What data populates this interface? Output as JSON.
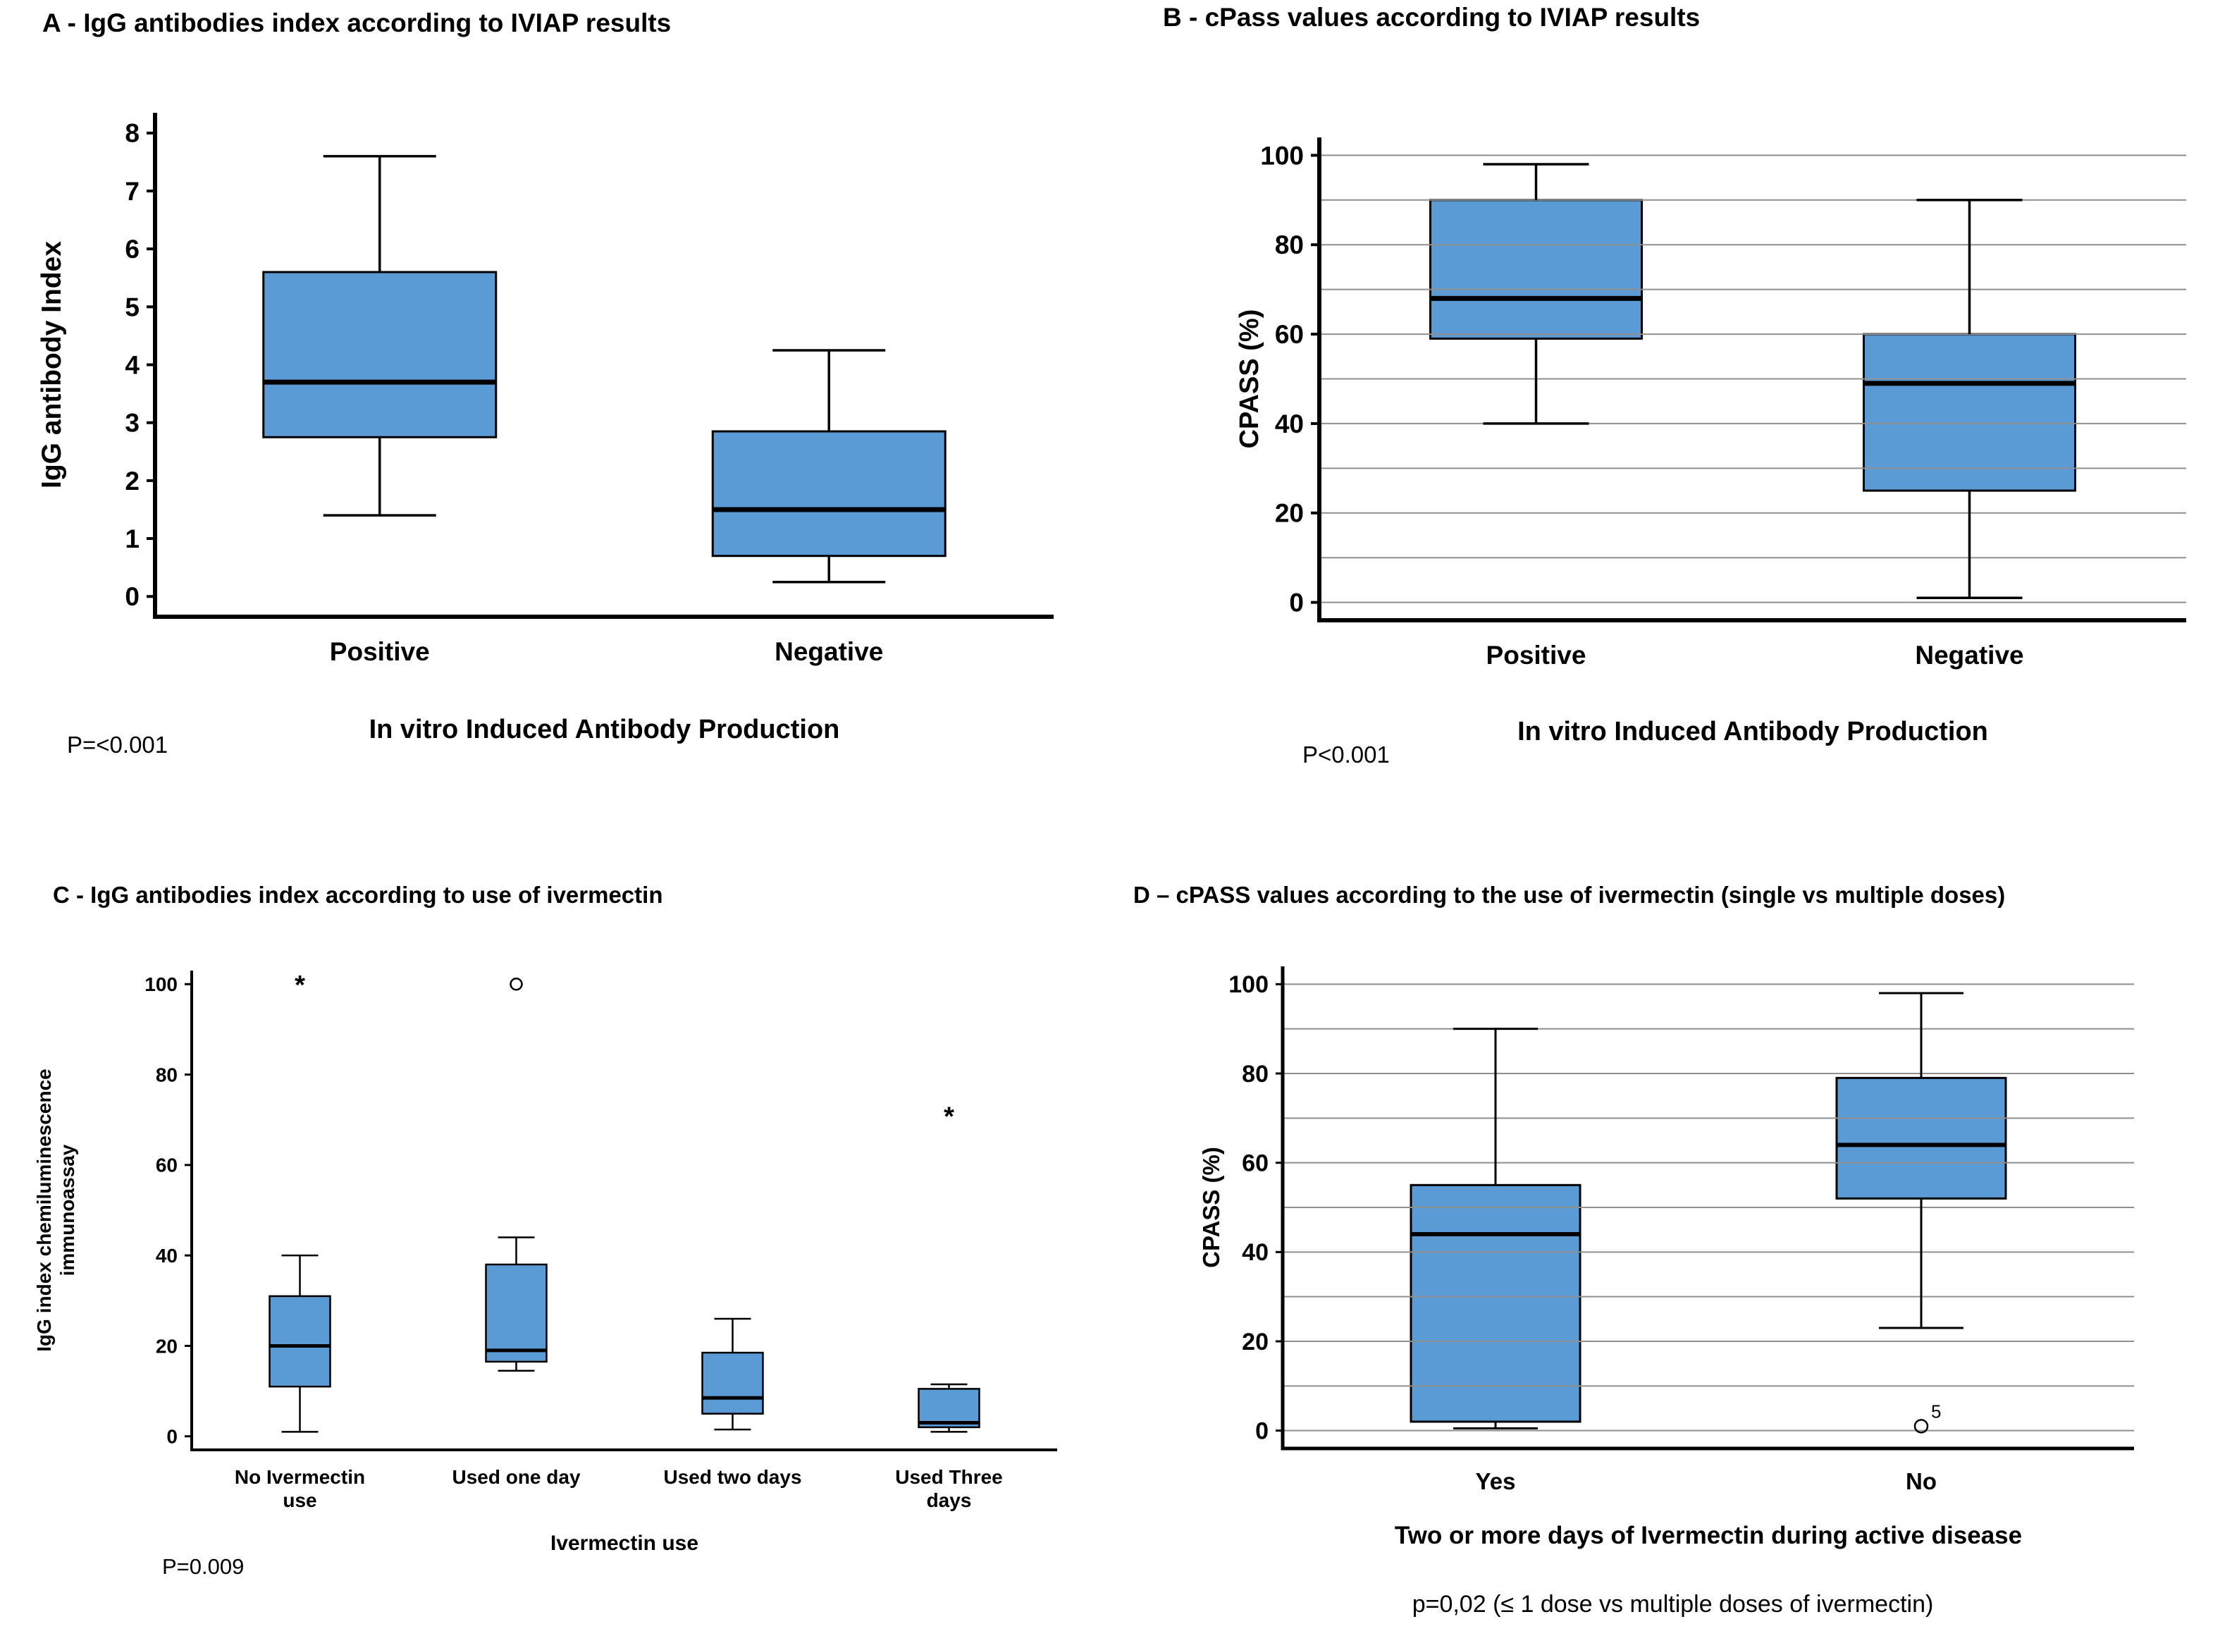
{
  "figure": {
    "background": "#ffffff",
    "box_fill": "#5B9BD5",
    "box_stroke": "#000000",
    "grid_color": "#8f8f8f"
  },
  "chart_data": [
    {
      "id": "A",
      "type": "box",
      "title": "A - IgG antibodies index according to IVIAP results",
      "ylabel": "IgG antibody Index",
      "xlabel": "In vitro Induced Antibody Production",
      "p_value": "P=<0.001",
      "ylim": [
        0,
        8
      ],
      "yticks": [
        0,
        1,
        2,
        3,
        4,
        5,
        6,
        7,
        8
      ],
      "grid": false,
      "legend": "none",
      "categories": [
        "Positive",
        "Negative"
      ],
      "boxes": [
        {
          "category": "Positive",
          "whisker_low": 1.4,
          "q1": 2.75,
          "median": 3.7,
          "q3": 5.6,
          "whisker_high": 7.6
        },
        {
          "category": "Negative",
          "whisker_low": 0.25,
          "q1": 0.7,
          "median": 1.5,
          "q3": 2.85,
          "whisker_high": 4.25
        }
      ],
      "outliers": []
    },
    {
      "id": "B",
      "type": "box",
      "title": "B - cPass values according to  IVIAP results",
      "ylabel": "CPASS (%)",
      "xlabel": "In vitro Induced Antibody Production",
      "p_value": "P<0.001",
      "ylim": [
        0,
        100
      ],
      "yticks": [
        0,
        20,
        40,
        60,
        80,
        100
      ],
      "grid": true,
      "grid_step": 10,
      "legend": "none",
      "categories": [
        "Positive",
        "Negative"
      ],
      "boxes": [
        {
          "category": "Positive",
          "whisker_low": 40,
          "q1": 59,
          "median": 68,
          "q3": 90,
          "whisker_high": 98
        },
        {
          "category": "Negative",
          "whisker_low": 1,
          "q1": 25,
          "median": 49,
          "q3": 60,
          "whisker_high": 90
        }
      ],
      "outliers": []
    },
    {
      "id": "C",
      "type": "box",
      "title": "C - IgG antibodies index according to use of ivermectin",
      "ylabel": "IgG index chemiluminescence\nimmunoassay",
      "xlabel": "Ivermectin use",
      "p_value": "P=0.009",
      "ylim": [
        0,
        100
      ],
      "yticks": [
        0,
        20,
        40,
        60,
        80,
        100
      ],
      "grid": false,
      "legend": "none",
      "categories": [
        "No Ivermectin\nuse",
        "Used one day",
        "Used two days",
        "Used Three\ndays"
      ],
      "boxes": [
        {
          "category": "No Ivermectin use",
          "whisker_low": 1,
          "q1": 11,
          "median": 20,
          "q3": 31,
          "whisker_high": 40
        },
        {
          "category": "Used one day",
          "whisker_low": 14.5,
          "q1": 16.5,
          "median": 19,
          "q3": 38,
          "whisker_high": 44
        },
        {
          "category": "Used two days",
          "whisker_low": 1.5,
          "q1": 5,
          "median": 8.5,
          "q3": 18.5,
          "whisker_high": 26
        },
        {
          "category": "Used Three days",
          "whisker_low": 1,
          "q1": 2,
          "median": 3,
          "q3": 10.5,
          "whisker_high": 11.5
        }
      ],
      "outliers": [
        {
          "category_index": 0,
          "value": 100,
          "symbol": "star"
        },
        {
          "category_index": 1,
          "value": 100,
          "symbol": "circle"
        },
        {
          "category_index": 3,
          "value": 71,
          "symbol": "star"
        }
      ]
    },
    {
      "id": "D",
      "type": "box",
      "title": "D – cPASS values according to the use of ivermectin  (single vs multiple doses)",
      "ylabel": "CPASS (%)",
      "xlabel": "Two or more days of Ivermectin during active disease",
      "p_value": "p=0,02  (≤ 1 dose vs multiple doses of   ivermectin)",
      "ylim": [
        0,
        100
      ],
      "yticks": [
        0,
        20,
        40,
        60,
        80,
        100
      ],
      "grid": true,
      "grid_step": 10,
      "legend": "none",
      "categories": [
        "Yes",
        "No"
      ],
      "boxes": [
        {
          "category": "Yes",
          "whisker_low": 0.5,
          "q1": 2,
          "median": 44,
          "q3": 55,
          "whisker_high": 90
        },
        {
          "category": "No",
          "whisker_low": 23,
          "q1": 52,
          "median": 64,
          "q3": 79,
          "whisker_high": 98
        }
      ],
      "outliers": [
        {
          "category_index": 1,
          "value": 1,
          "symbol": "circle",
          "label": "5"
        }
      ]
    }
  ]
}
